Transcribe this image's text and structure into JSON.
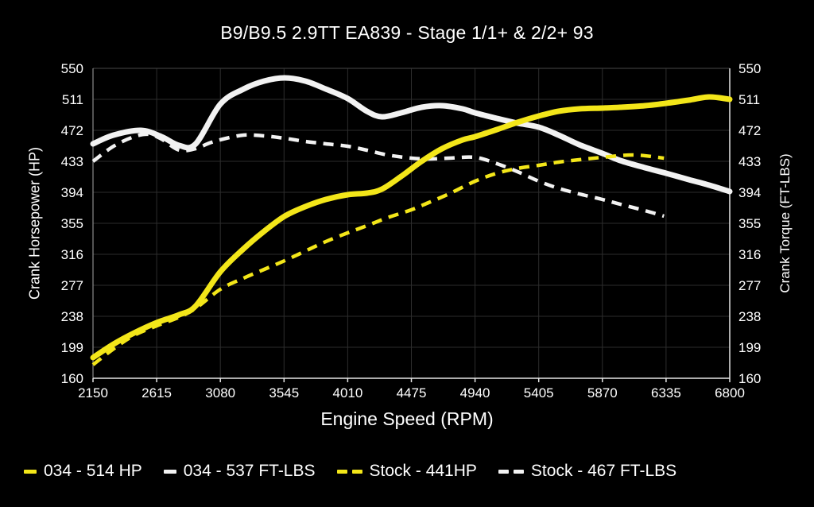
{
  "chart": {
    "title": "B9/B9.5 2.9TT EA839 - Stage 1/1+ & 2/2+ 93",
    "x_axis_title": "Engine Speed (RPM)",
    "left_axis_title": "Crank Horsepower (HP)",
    "right_axis_title": "Crank Torque (FT-LBS)"
  },
  "legend": {
    "items": [
      {
        "label": "034 - 514 HP",
        "color": "#f3e619",
        "dashed": false
      },
      {
        "label": "034 - 537 FT-LBS",
        "color": "#f2f2f2",
        "dashed": false
      },
      {
        "label": "Stock - 441HP",
        "color": "#f3e619",
        "dashed": true
      },
      {
        "label": "Stock - 467 FT-LBS",
        "color": "#f2f2f2",
        "dashed": true
      }
    ]
  },
  "chart_data": {
    "type": "line",
    "title": "B9/B9.5 2.9TT EA839 - Stage 1/1+ & 2/2+ 93",
    "xlabel": "Engine Speed (RPM)",
    "ylabel_left": "Crank Horsepower (HP)",
    "ylabel_right": "Crank Torque (FT-LBS)",
    "xlim": [
      2150,
      6800
    ],
    "ylim": [
      160,
      550
    ],
    "x_ticks": [
      2150,
      2615,
      3080,
      3545,
      4010,
      4475,
      4940,
      5405,
      5870,
      6335,
      6800
    ],
    "y_ticks": [
      160,
      199,
      238,
      277,
      316,
      355,
      394,
      433,
      472,
      511,
      550
    ],
    "grid": true,
    "legend_position": "bottom",
    "background": "#000000",
    "grid_color": "#2d2d2d",
    "series": [
      {
        "name": "Stock - 467 FT-LBS",
        "axis": "right",
        "color": "#f2f2f2",
        "dashed": true,
        "peak": 467,
        "points": [
          [
            2150,
            433
          ],
          [
            2300,
            452
          ],
          [
            2450,
            464
          ],
          [
            2560,
            467
          ],
          [
            2650,
            461
          ],
          [
            2780,
            447
          ],
          [
            2900,
            449
          ],
          [
            3000,
            456
          ],
          [
            3100,
            461
          ],
          [
            3250,
            466
          ],
          [
            3400,
            465
          ],
          [
            3550,
            462
          ],
          [
            3700,
            458
          ],
          [
            3850,
            455
          ],
          [
            4010,
            452
          ],
          [
            4150,
            447
          ],
          [
            4300,
            441
          ],
          [
            4475,
            437
          ],
          [
            4600,
            436
          ],
          [
            4750,
            437
          ],
          [
            4940,
            438
          ],
          [
            5100,
            430
          ],
          [
            5250,
            420
          ],
          [
            5405,
            408
          ],
          [
            5550,
            399
          ],
          [
            5700,
            392
          ],
          [
            5870,
            385
          ],
          [
            6000,
            379
          ],
          [
            6180,
            371
          ],
          [
            6320,
            364
          ]
        ]
      },
      {
        "name": "034 - 537 FT-LBS",
        "axis": "right",
        "color": "#f2f2f2",
        "dashed": false,
        "peak": 537,
        "points": [
          [
            2150,
            455
          ],
          [
            2300,
            466
          ],
          [
            2500,
            472
          ],
          [
            2650,
            464
          ],
          [
            2780,
            453
          ],
          [
            2900,
            455
          ],
          [
            3080,
            505
          ],
          [
            3250,
            524
          ],
          [
            3400,
            534
          ],
          [
            3550,
            538
          ],
          [
            3700,
            534
          ],
          [
            3850,
            524
          ],
          [
            4010,
            512
          ],
          [
            4150,
            496
          ],
          [
            4260,
            489
          ],
          [
            4400,
            494
          ],
          [
            4550,
            501
          ],
          [
            4700,
            503
          ],
          [
            4850,
            499
          ],
          [
            4940,
            494
          ],
          [
            5100,
            487
          ],
          [
            5250,
            481
          ],
          [
            5405,
            476
          ],
          [
            5550,
            466
          ],
          [
            5700,
            454
          ],
          [
            5870,
            443
          ],
          [
            6000,
            434
          ],
          [
            6180,
            425
          ],
          [
            6335,
            418
          ],
          [
            6500,
            410
          ],
          [
            6650,
            403
          ],
          [
            6800,
            395
          ]
        ]
      },
      {
        "name": "Stock - 441HP",
        "axis": "left",
        "color": "#f3e619",
        "dashed": true,
        "peak": 441,
        "points": [
          [
            2150,
            177
          ],
          [
            2300,
            197
          ],
          [
            2450,
            214
          ],
          [
            2615,
            226
          ],
          [
            2780,
            237
          ],
          [
            2900,
            248
          ],
          [
            3080,
            272
          ],
          [
            3250,
            286
          ],
          [
            3400,
            297
          ],
          [
            3550,
            308
          ],
          [
            3700,
            320
          ],
          [
            3850,
            332
          ],
          [
            4010,
            343
          ],
          [
            4150,
            352
          ],
          [
            4300,
            362
          ],
          [
            4475,
            372
          ],
          [
            4600,
            381
          ],
          [
            4750,
            392
          ],
          [
            4940,
            408
          ],
          [
            5100,
            418
          ],
          [
            5250,
            424
          ],
          [
            5405,
            428
          ],
          [
            5550,
            432
          ],
          [
            5700,
            435
          ],
          [
            5870,
            438
          ],
          [
            6100,
            441
          ],
          [
            6320,
            437
          ]
        ]
      },
      {
        "name": "034 - 514 HP",
        "axis": "left",
        "color": "#f3e619",
        "dashed": false,
        "peak": 514,
        "points": [
          [
            2150,
            186
          ],
          [
            2300,
            203
          ],
          [
            2450,
            217
          ],
          [
            2615,
            230
          ],
          [
            2780,
            240
          ],
          [
            2900,
            251
          ],
          [
            3080,
            294
          ],
          [
            3250,
            323
          ],
          [
            3400,
            345
          ],
          [
            3550,
            364
          ],
          [
            3700,
            376
          ],
          [
            3850,
            385
          ],
          [
            4010,
            391
          ],
          [
            4150,
            393
          ],
          [
            4260,
            398
          ],
          [
            4400,
            414
          ],
          [
            4550,
            433
          ],
          [
            4700,
            449
          ],
          [
            4850,
            460
          ],
          [
            4940,
            464
          ],
          [
            5100,
            473
          ],
          [
            5250,
            482
          ],
          [
            5405,
            490
          ],
          [
            5550,
            496
          ],
          [
            5700,
            499
          ],
          [
            5870,
            500
          ],
          [
            6000,
            501
          ],
          [
            6180,
            503
          ],
          [
            6335,
            506
          ],
          [
            6500,
            510
          ],
          [
            6650,
            514
          ],
          [
            6800,
            511
          ]
        ]
      }
    ]
  }
}
